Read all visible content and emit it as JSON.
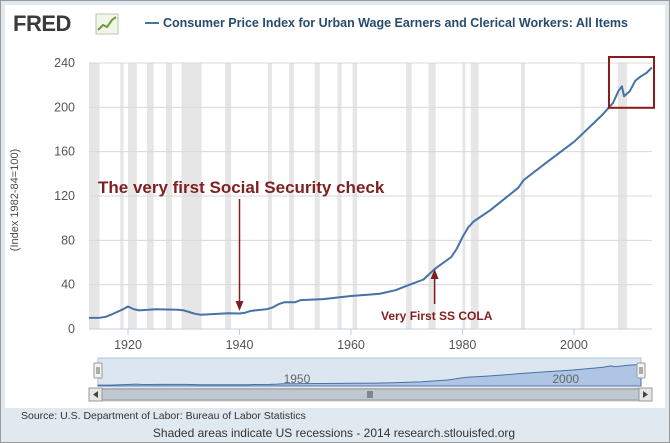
{
  "brand": {
    "logo_text": "FRED",
    "logo_icon": "trend-line-icon"
  },
  "chart_data": {
    "type": "line",
    "title": "Consumer Price Index for Urban Wage Earners and Clerical Workers: All Items",
    "ylabel": "(Index 1982-84=100)",
    "xlim": [
      1913,
      2014
    ],
    "ylim": [
      0,
      240
    ],
    "yticks": [
      0,
      40,
      80,
      120,
      160,
      200,
      240
    ],
    "xticks": [
      1920,
      1940,
      1960,
      1980,
      2000
    ],
    "series": [
      {
        "name": "Consumer Price Index for Urban Wage Earners and Clerical Workers: All Items",
        "color": "#4572a7",
        "x": [
          1913,
          1915,
          1916,
          1917,
          1918,
          1919,
          1920,
          1921,
          1922,
          1925,
          1929,
          1930,
          1931,
          1932,
          1933,
          1938,
          1940,
          1941,
          1942,
          1945,
          1946,
          1947,
          1948,
          1950,
          1951,
          1955,
          1960,
          1965,
          1968,
          1970,
          1973,
          1975,
          1978,
          1979,
          1980,
          1981,
          1982,
          1985,
          1990,
          1991,
          1995,
          2000,
          2001,
          2005,
          2007,
          2008,
          2008.6,
          2009,
          2010,
          2011,
          2012,
          2013,
          2014
        ],
        "y": [
          10,
          10.2,
          11,
          13,
          15.3,
          17.5,
          20.3,
          18,
          16.8,
          17.8,
          17.3,
          16.8,
          15.3,
          13.7,
          12.9,
          14.2,
          14,
          14.7,
          16.3,
          18,
          19.6,
          22.4,
          24.1,
          24.2,
          26.1,
          27,
          29.8,
          31.7,
          35,
          39,
          44.7,
          54,
          65,
          72.6,
          82.9,
          91.4,
          97,
          107.2,
          127.4,
          134.4,
          150,
          168.9,
          173.5,
          192.7,
          204,
          215,
          219,
          210,
          214.5,
          224,
          228,
          231,
          236
        ]
      }
    ],
    "recessions": [
      [
        1913.0,
        1914.9
      ],
      [
        1918.6,
        1919.2
      ],
      [
        1920.0,
        1921.6
      ],
      [
        1923.4,
        1924.6
      ],
      [
        1926.8,
        1927.9
      ],
      [
        1929.6,
        1933.2
      ],
      [
        1937.4,
        1938.5
      ],
      [
        1945.1,
        1945.8
      ],
      [
        1948.9,
        1949.8
      ],
      [
        1953.5,
        1954.4
      ],
      [
        1957.6,
        1958.3
      ],
      [
        1960.3,
        1961.1
      ],
      [
        1969.9,
        1970.9
      ],
      [
        1973.9,
        1975.2
      ],
      [
        1980.0,
        1980.5
      ],
      [
        1981.5,
        1982.9
      ],
      [
        1990.5,
        1991.2
      ],
      [
        2001.2,
        2001.9
      ],
      [
        2007.9,
        2009.5
      ]
    ],
    "grid": "horizontal",
    "annotations": [
      {
        "text": "The very first Social Security check",
        "color": "#7f1f1f",
        "x": 1940,
        "y": 14
      },
      {
        "text": "Very First SS COLA",
        "color": "#7f1f1f",
        "x": 1975,
        "y": 54
      }
    ],
    "highlight_box": {
      "x_range": [
        2007,
        2014
      ],
      "y_range": [
        205,
        240
      ],
      "color": "#8b1a1a"
    }
  },
  "navigator": {
    "tick_labels": [
      "1950",
      "2000"
    ],
    "tick_years": [
      1950,
      2000
    ],
    "scroll_left_icon": "chevron-left-icon",
    "scroll_right_icon": "chevron-right-icon",
    "grip_icon": "grip-icon"
  },
  "source_text": "Source: U.S. Department of Labor: Bureau of Labor Statistics",
  "footer_text": "Shaded areas indicate US recessions - 2014 research.stlouisfed.org"
}
